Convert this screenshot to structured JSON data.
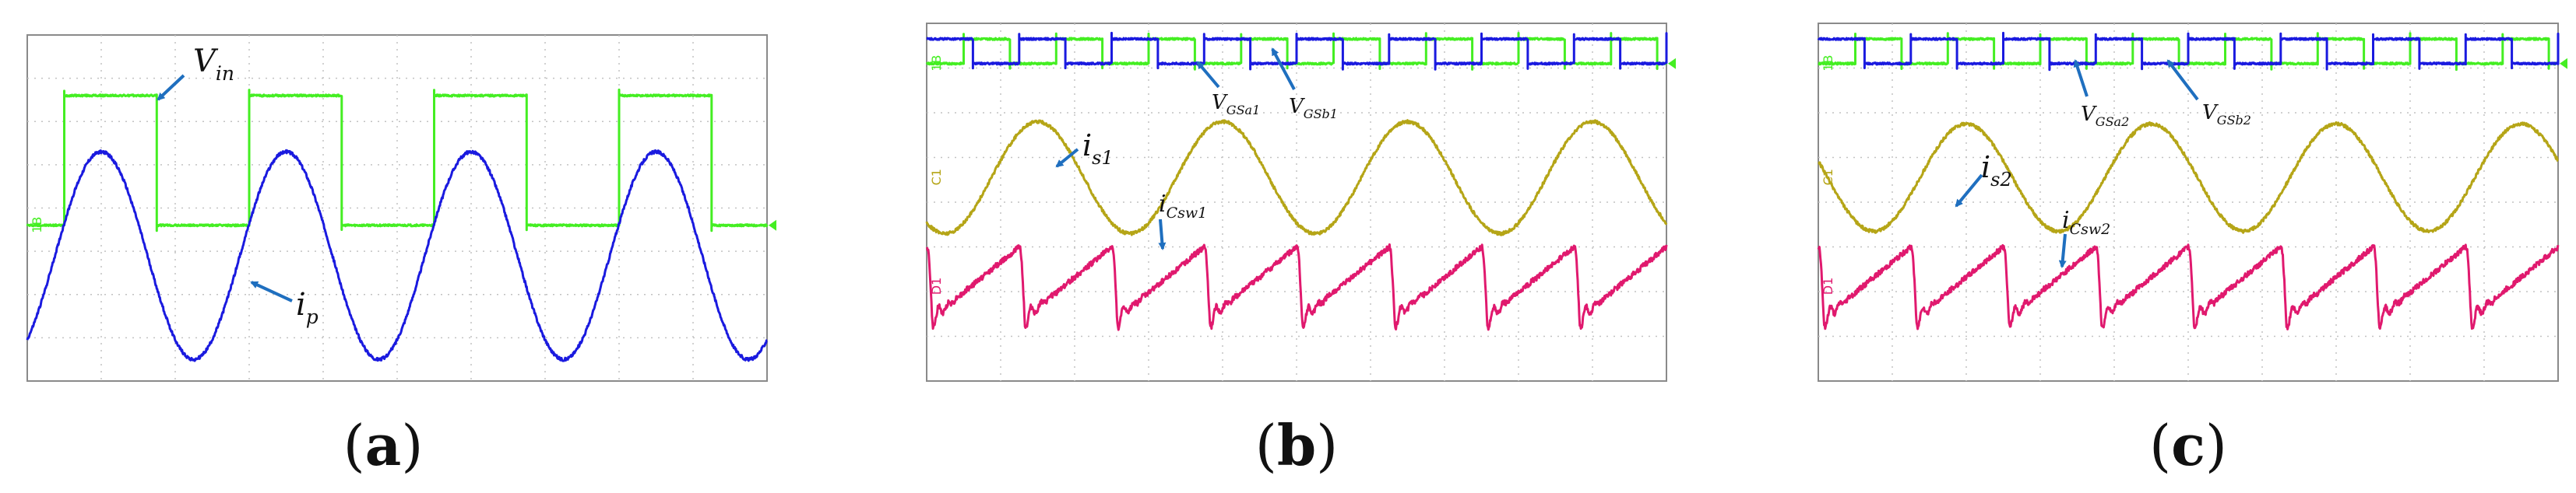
{
  "figure": {
    "panels": [
      {
        "id": "a",
        "label": "a",
        "chart_data": {
          "type": "line",
          "title": "",
          "xlabel": "",
          "ylabel": "",
          "grid": true,
          "grid_divisions": {
            "x": 10,
            "y": 8
          },
          "x_range": [
            0,
            10
          ],
          "y_range": [
            -4,
            4
          ],
          "series": [
            {
              "name": "Vin",
              "color": "#44ee22",
              "kind": "square",
              "period": 2.5,
              "phase": 0.5,
              "duty": 0.5,
              "high": 2.6,
              "low": -0.4,
              "channel_marker": "1B"
            },
            {
              "name": "ip",
              "color": "#1a1adf",
              "kind": "sine",
              "period": 2.5,
              "peak_at": 1.0,
              "amplitude": 2.4,
              "offset": -1.1
            }
          ],
          "annotations": [
            {
              "base": "V",
              "sub": "in",
              "series": "Vin"
            },
            {
              "base": "i",
              "sub": "p",
              "series": "ip"
            }
          ]
        }
      },
      {
        "id": "b",
        "label": "b",
        "chart_data": {
          "type": "line",
          "title": "",
          "xlabel": "",
          "ylabel": "",
          "grid": true,
          "grid_divisions": {
            "x": 10,
            "y": 8
          },
          "x_range": [
            0,
            10
          ],
          "y_range": [
            -4,
            4
          ],
          "series": [
            {
              "name": "VGSa1",
              "color": "#44ee22",
              "kind": "square",
              "period": 1.25,
              "phase": 0.5,
              "duty": 0.5,
              "high": 3.65,
              "low": 3.1,
              "channel_marker": "1B"
            },
            {
              "name": "VGSb1",
              "color": "#1a1adf",
              "kind": "square",
              "period": 1.25,
              "phase": 0.0,
              "duty": 0.5,
              "high": 3.65,
              "low": 3.1
            },
            {
              "name": "is1",
              "color": "#b5a517",
              "kind": "sine",
              "period": 2.5,
              "peak_at": 1.5,
              "amplitude": 1.25,
              "offset": 0.55,
              "channel_marker": "C1"
            },
            {
              "name": "iCsw1",
              "color": "#e0196e",
              "kind": "resonant",
              "period": 1.25,
              "offset": -1.9,
              "amplitude": 1.0,
              "channel_marker": "D1"
            }
          ],
          "annotations": [
            {
              "base": "V",
              "sub": "GSa1",
              "series": "VGSa1"
            },
            {
              "base": "V",
              "sub": "GSb1",
              "series": "VGSb1"
            },
            {
              "base": "i",
              "sub": "s1",
              "series": "is1"
            },
            {
              "base": "i",
              "sub": "Csw1",
              "series": "iCsw1"
            }
          ]
        }
      },
      {
        "id": "c",
        "label": "c",
        "chart_data": {
          "type": "line",
          "title": "",
          "xlabel": "",
          "ylabel": "",
          "grid": true,
          "grid_divisions": {
            "x": 10,
            "y": 8
          },
          "x_range": [
            0,
            10
          ],
          "y_range": [
            -4,
            4
          ],
          "series": [
            {
              "name": "VGSa2",
              "color": "#44ee22",
              "kind": "square",
              "period": 1.25,
              "phase": 0.5,
              "duty": 0.5,
              "high": 3.65,
              "low": 3.1,
              "channel_marker": "1B"
            },
            {
              "name": "VGSb2",
              "color": "#1a1adf",
              "kind": "square",
              "period": 1.25,
              "phase": 0.0,
              "duty": 0.5,
              "high": 3.65,
              "low": 3.1
            },
            {
              "name": "is2",
              "color": "#b5a517",
              "kind": "sine",
              "period": 2.5,
              "peak_at": 2.0,
              "amplitude": 1.2,
              "offset": 0.55,
              "channel_marker": "C1"
            },
            {
              "name": "iCsw2",
              "color": "#e0196e",
              "kind": "resonant",
              "period": 1.25,
              "offset": -1.9,
              "amplitude": 1.0,
              "channel_marker": "D1"
            }
          ],
          "annotations": [
            {
              "base": "V",
              "sub": "GSa2",
              "series": "VGSa2"
            },
            {
              "base": "V",
              "sub": "GSb2",
              "series": "VGSb2"
            },
            {
              "base": "i",
              "sub": "s2",
              "series": "is2"
            },
            {
              "base": "i",
              "sub": "Csw2",
              "series": "iCsw2"
            }
          ]
        }
      }
    ],
    "colors": {
      "grid": "#c2c2c2",
      "frame": "#8a8a8a",
      "arrow": "#1f6fbf",
      "ch_marker_right": "#44ee22"
    }
  }
}
